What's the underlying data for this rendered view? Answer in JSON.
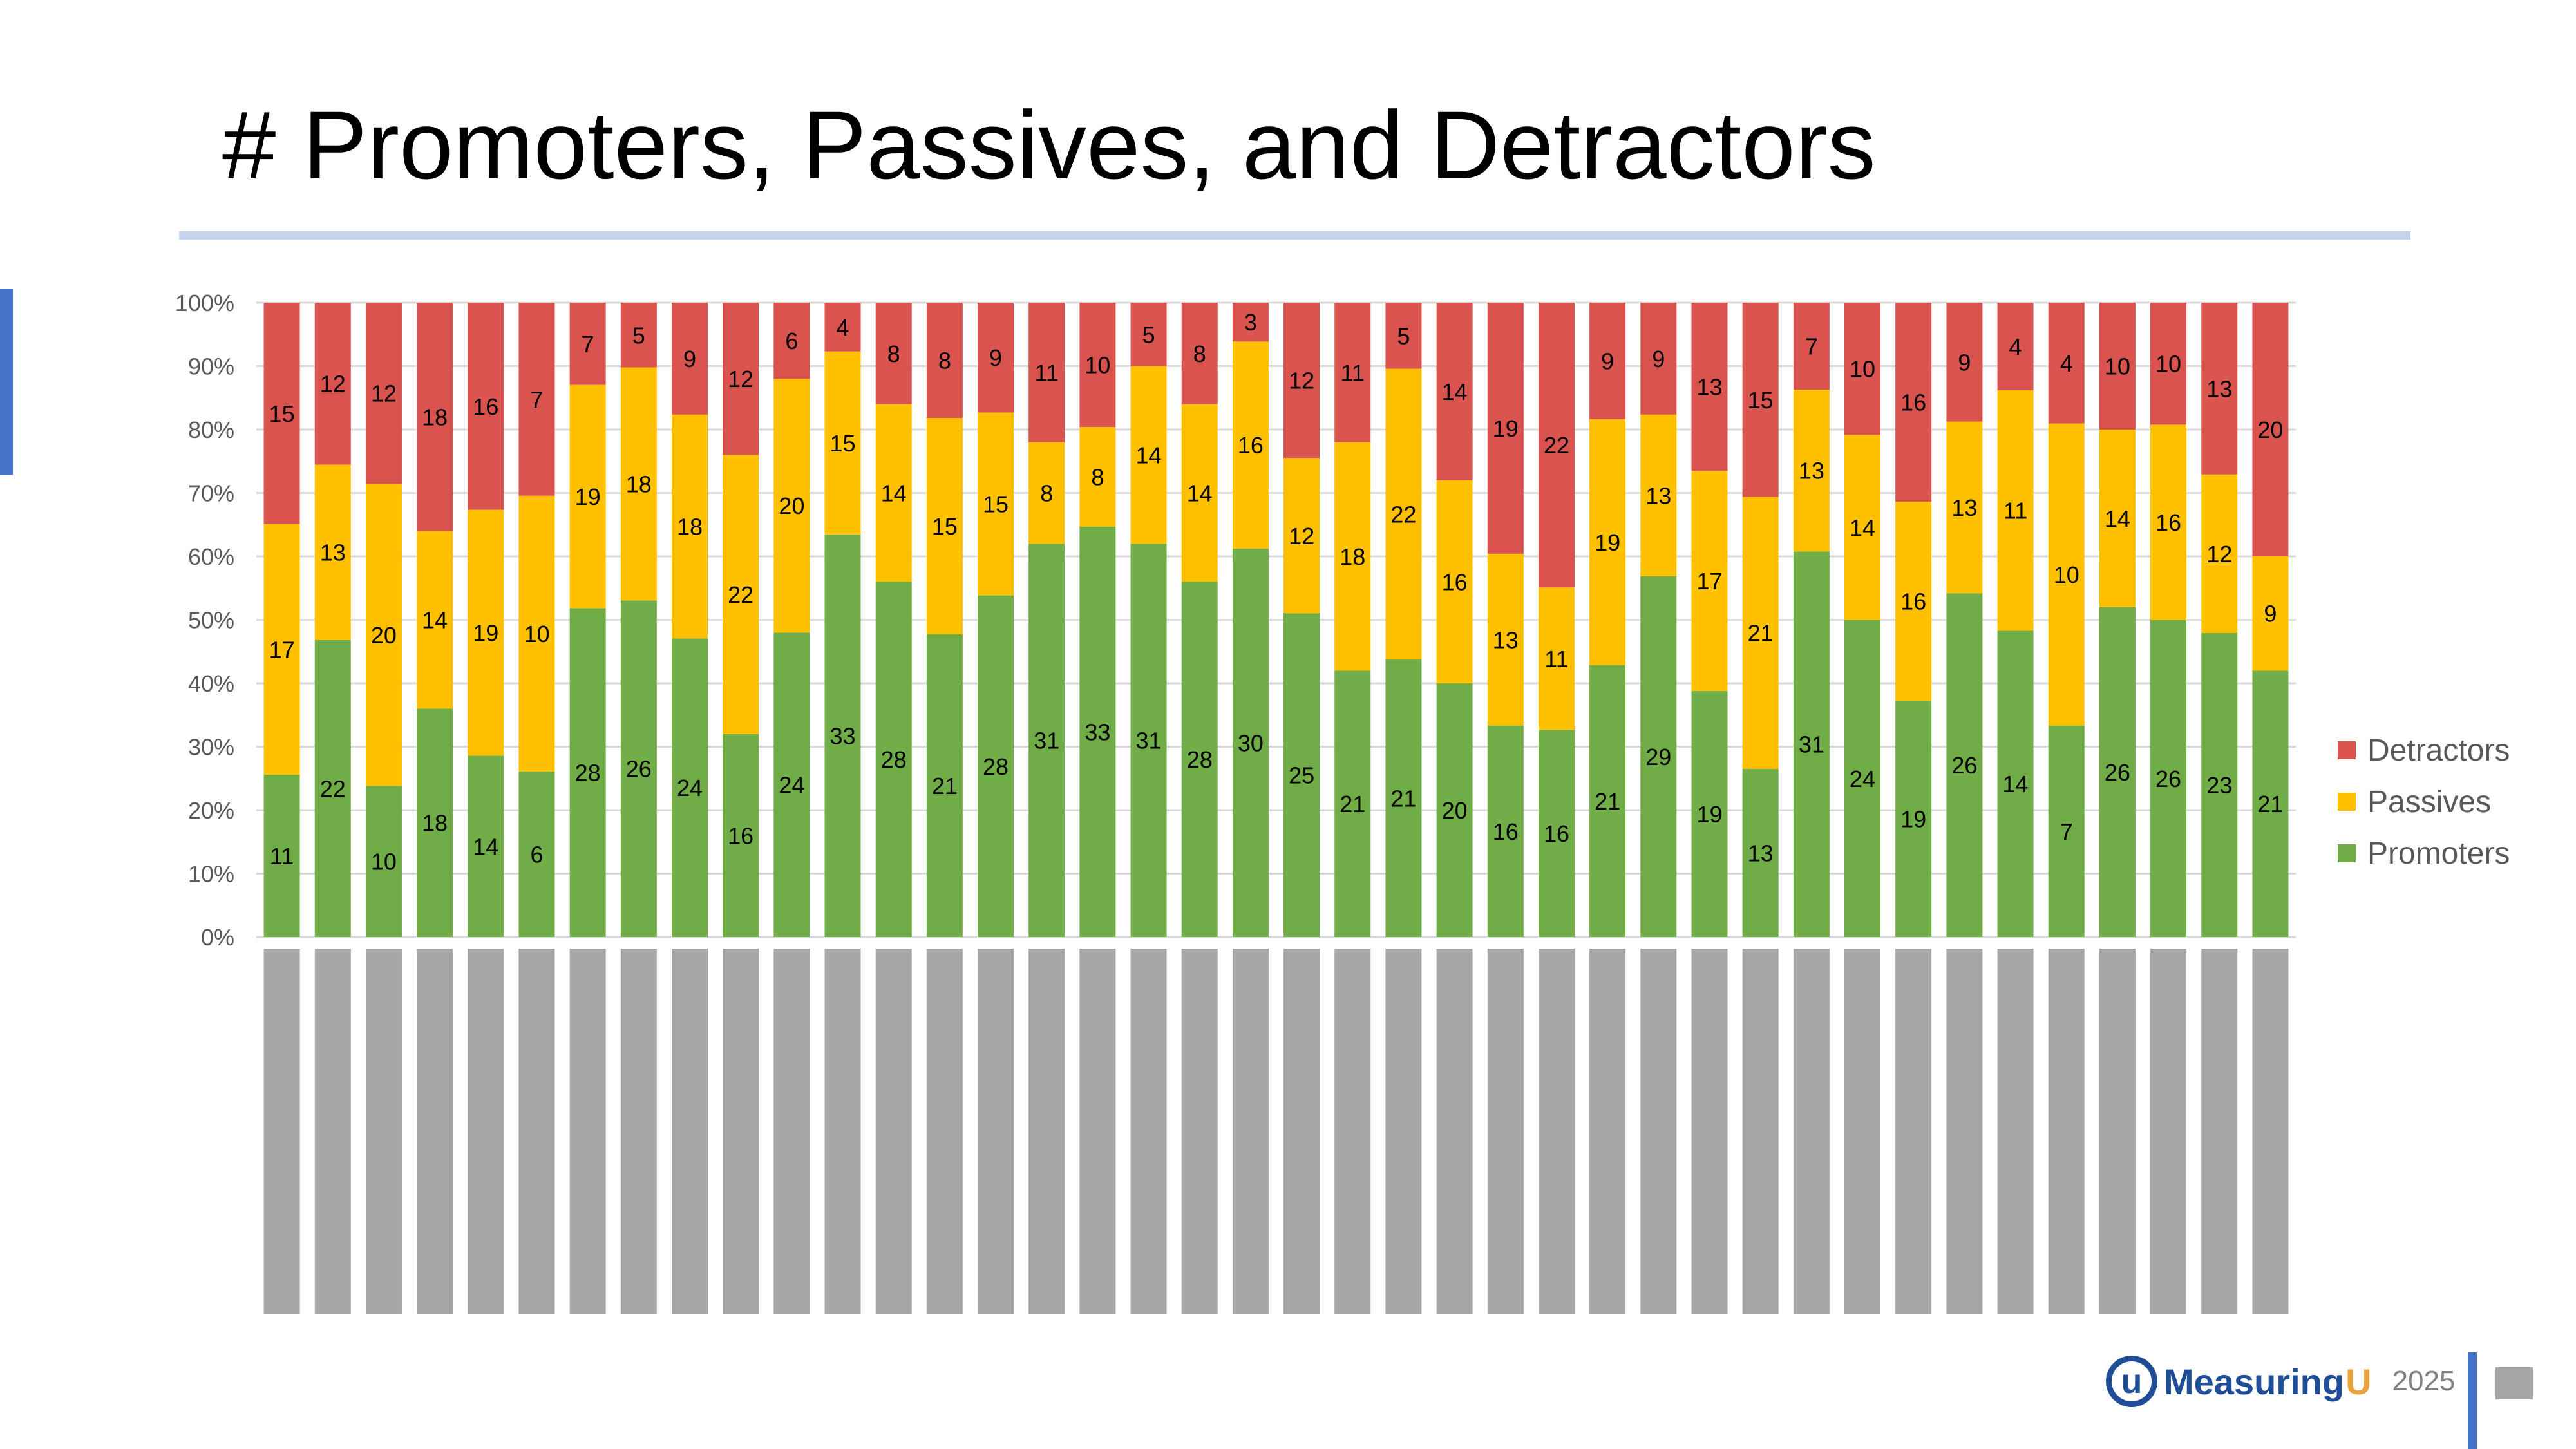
{
  "slide": {
    "title": "# Promoters, Passives, and Detractors",
    "footer_logo_text": "Measuring",
    "footer_logo_accent": "U",
    "footer_logo_mark": "u",
    "footer_year": "2025"
  },
  "colors": {
    "promoters": "#70ad47",
    "passives": "#ffc000",
    "detractors": "#d9534f",
    "redacted": "#a6a6a6",
    "grid": "#d9d9d9",
    "axis_text": "#595959"
  },
  "chart_data": {
    "type": "bar",
    "stacked": "percent",
    "title": "",
    "xlabel": "",
    "ylabel": "",
    "ylim": [
      0,
      100
    ],
    "yticks": [
      "0%",
      "10%",
      "20%",
      "30%",
      "40%",
      "50%",
      "60%",
      "70%",
      "80%",
      "90%",
      "100%"
    ],
    "categories_redacted": true,
    "legend_position": "right",
    "series": [
      {
        "name": "Promoters",
        "values": [
          11,
          22,
          10,
          18,
          14,
          6,
          28,
          26,
          24,
          16,
          24,
          33,
          28,
          21,
          28,
          31,
          33,
          31,
          28,
          30,
          25,
          21,
          21,
          20,
          16,
          16,
          21,
          29,
          19,
          13,
          31,
          24,
          19,
          26,
          14,
          7,
          26,
          26,
          23,
          21
        ]
      },
      {
        "name": "Passives",
        "values": [
          17,
          13,
          20,
          14,
          19,
          10,
          19,
          18,
          18,
          22,
          20,
          15,
          14,
          15,
          15,
          8,
          8,
          14,
          14,
          16,
          12,
          18,
          22,
          16,
          13,
          11,
          19,
          13,
          17,
          21,
          13,
          14,
          16,
          13,
          11,
          10,
          14,
          16,
          12,
          9
        ]
      },
      {
        "name": "Detractors",
        "values": [
          15,
          12,
          12,
          18,
          16,
          7,
          7,
          5,
          9,
          12,
          6,
          4,
          8,
          8,
          9,
          11,
          10,
          5,
          8,
          3,
          12,
          11,
          5,
          14,
          19,
          22,
          9,
          9,
          13,
          15,
          7,
          10,
          16,
          9,
          4,
          4,
          10,
          10,
          13,
          20
        ]
      }
    ],
    "legend": [
      "Detractors",
      "Passives",
      "Promoters"
    ]
  }
}
